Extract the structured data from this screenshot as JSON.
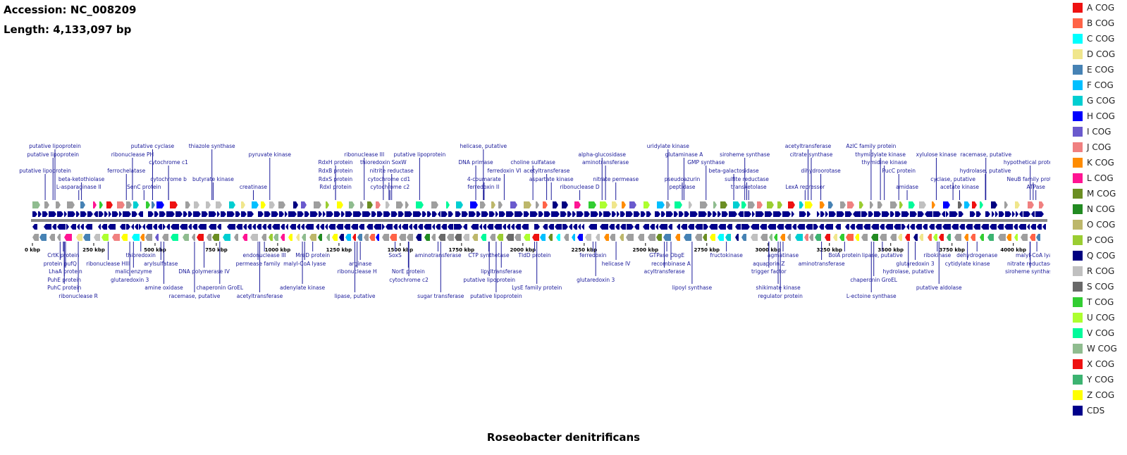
{
  "accession": "Accession: NC_008209",
  "length": "Length: 4,133,097 bp",
  "organism": "Roseobacter denitrificans",
  "genome_bp": 4133097,
  "legend": [
    {
      "label": "A COG",
      "color": "#ee1111"
    },
    {
      "label": "B COG",
      "color": "#ff6347"
    },
    {
      "label": "C COG",
      "color": "#00ffff"
    },
    {
      "label": "D COG",
      "color": "#f0e68c"
    },
    {
      "label": "E COG",
      "color": "#4682b4"
    },
    {
      "label": "F COG",
      "color": "#00bfff"
    },
    {
      "label": "G COG",
      "color": "#00ced1"
    },
    {
      "label": "H COG",
      "color": "#0000ff"
    },
    {
      "label": "I COG",
      "color": "#6a5acd"
    },
    {
      "label": "J COG",
      "color": "#f08080"
    },
    {
      "label": "K COG",
      "color": "#ff8c00"
    },
    {
      "label": "L COG",
      "color": "#ff1493"
    },
    {
      "label": "M COG",
      "color": "#6b8e23"
    },
    {
      "label": "N COG",
      "color": "#228b22"
    },
    {
      "label": "O COG",
      "color": "#bdb76b"
    },
    {
      "label": "P COG",
      "color": "#9acd32"
    },
    {
      "label": "Q COG",
      "color": "#000080"
    },
    {
      "label": "R COG",
      "color": "#c0c0c0"
    },
    {
      "label": "S COG",
      "color": "#696969"
    },
    {
      "label": "T COG",
      "color": "#32cd32"
    },
    {
      "label": "U COG",
      "color": "#adff2f"
    },
    {
      "label": "V COG",
      "color": "#00fa9a"
    },
    {
      "label": "W COG",
      "color": "#8fbc8f"
    },
    {
      "label": "X COG",
      "color": "#ee1111"
    },
    {
      "label": "Y COG",
      "color": "#3cb371"
    },
    {
      "label": "Z COG",
      "color": "#ffff00"
    },
    {
      "label": "CDS",
      "color": "#00008b"
    }
  ],
  "ticks": [
    "0 kbp",
    "250 kbp",
    "500 kbp",
    "750 kbp",
    "1000 kbp",
    "1250 kbp",
    "1500 kbp",
    "1750 kbp",
    "2000 kbp",
    "2250 kbp",
    "2500 kbp",
    "2750 kbp",
    "3000 kbp",
    "3250 kbp",
    "3500 kbp",
    "3750 kbp",
    "4000 kbp"
  ],
  "labels_above": [
    {
      "text": "putative lipoprotein",
      "kbp": 92,
      "row": 0
    },
    {
      "text": "putative lipoprotein",
      "kbp": 84,
      "row": 1
    },
    {
      "text": "putative lipoprotein",
      "kbp": 52,
      "row": 3
    },
    {
      "text": "beta-ketothiolase",
      "kbp": 200,
      "row": 4
    },
    {
      "text": "L-asparaginase II",
      "kbp": 189,
      "row": 5
    },
    {
      "text": "putative cyclase",
      "kbp": 490,
      "row": 0
    },
    {
      "text": "ribonuclease PH",
      "kbp": 408,
      "row": 1
    },
    {
      "text": "cytochrome c1",
      "kbp": 555,
      "row": 2
    },
    {
      "text": "ferrochelatase",
      "kbp": 383,
      "row": 3
    },
    {
      "text": "cytochrome b",
      "kbp": 555,
      "row": 4
    },
    {
      "text": "SenC protein",
      "kbp": 455,
      "row": 5
    },
    {
      "text": "thiazole synthase",
      "kbp": 732,
      "row": 0
    },
    {
      "text": "butyrate kinase",
      "kbp": 737,
      "row": 4
    },
    {
      "text": "pyruvate kinase",
      "kbp": 968,
      "row": 1
    },
    {
      "text": "creatinase",
      "kbp": 901,
      "row": 5
    },
    {
      "text": "ribonuclease III",
      "kbp": 1353,
      "row": 1
    },
    {
      "text": "RdxH protein",
      "kbp": 1236,
      "row": 2
    },
    {
      "text": "RdxB protein",
      "kbp": 1236,
      "row": 3
    },
    {
      "text": "RdxS protein",
      "kbp": 1236,
      "row": 4
    },
    {
      "text": "RdxI protein",
      "kbp": 1236,
      "row": 5
    },
    {
      "text": "thioredoxin SoxW",
      "kbp": 1431,
      "row": 2
    },
    {
      "text": "nitrite reductase",
      "kbp": 1465,
      "row": 3
    },
    {
      "text": "cytochrome cd1",
      "kbp": 1454,
      "row": 4
    },
    {
      "text": "cytochrome c2",
      "kbp": 1458,
      "row": 5
    },
    {
      "text": "putative lipoprotein",
      "kbp": 1579,
      "row": 1
    },
    {
      "text": "helicase, putative",
      "kbp": 1839,
      "row": 0
    },
    {
      "text": "DNA primase",
      "kbp": 1808,
      "row": 2
    },
    {
      "text": "4-coumarate",
      "kbp": 1842,
      "row": 4
    },
    {
      "text": "ferredoxin II",
      "kbp": 1839,
      "row": 5
    },
    {
      "text": "choline sulfatase",
      "kbp": 2041,
      "row": 2
    },
    {
      "text": "ferredoxin VI",
      "kbp": 1924,
      "row": 3
    },
    {
      "text": "acetyltransferase",
      "kbp": 2097,
      "row": 3
    },
    {
      "text": "aspartate kinase",
      "kbp": 2116,
      "row": 4
    },
    {
      "text": "alpha-glucosidase",
      "kbp": 2323,
      "row": 1
    },
    {
      "text": "aminotransferase",
      "kbp": 2337,
      "row": 2
    },
    {
      "text": "nitrate permease",
      "kbp": 2379,
      "row": 4
    },
    {
      "text": "ribonuclease D",
      "kbp": 2232,
      "row": 5
    },
    {
      "text": "uridylate kinase",
      "kbp": 2592,
      "row": 0
    },
    {
      "text": "glutaminase A",
      "kbp": 2657,
      "row": 1
    },
    {
      "text": "GMP synthase",
      "kbp": 2747,
      "row": 2
    },
    {
      "text": "pseudoazurin",
      "kbp": 2650,
      "row": 4
    },
    {
      "text": "peptidase",
      "kbp": 2650,
      "row": 5
    },
    {
      "text": "siroheme synthase",
      "kbp": 2905,
      "row": 1
    },
    {
      "text": "beta-galactosidase",
      "kbp": 2860,
      "row": 3
    },
    {
      "text": "sulfite reductase",
      "kbp": 2913,
      "row": 4
    },
    {
      "text": "transketolase",
      "kbp": 2921,
      "row": 5
    },
    {
      "text": "acetyltransferase",
      "kbp": 3163,
      "row": 0
    },
    {
      "text": "citrate synthase",
      "kbp": 3176,
      "row": 1
    },
    {
      "text": "dihydroorotase",
      "kbp": 3215,
      "row": 3
    },
    {
      "text": "LexA repressor",
      "kbp": 3151,
      "row": 5
    },
    {
      "text": "AzlC family protein",
      "kbp": 3420,
      "row": 0
    },
    {
      "text": "thymidylate kinase",
      "kbp": 3458,
      "row": 1
    },
    {
      "text": "thymidine kinase",
      "kbp": 3474,
      "row": 2
    },
    {
      "text": "PucC protein",
      "kbp": 3533,
      "row": 3
    },
    {
      "text": "amidase",
      "kbp": 3567,
      "row": 5
    },
    {
      "text": "xylulose kinase",
      "kbp": 3686,
      "row": 1
    },
    {
      "text": "cyclase, putative",
      "kbp": 3754,
      "row": 4
    },
    {
      "text": "acetate kinase",
      "kbp": 3781,
      "row": 5
    },
    {
      "text": "racemase, putative",
      "kbp": 3888,
      "row": 1
    },
    {
      "text": "hydrolase, putative",
      "kbp": 3886,
      "row": 3
    },
    {
      "text": "hypothetical protein",
      "kbp": 4069,
      "row": 2
    },
    {
      "text": "NeuB family protein",
      "kbp": 4081,
      "row": 4
    },
    {
      "text": "ATPase",
      "kbp": 4092,
      "row": 5
    }
  ],
  "labels_below": [
    {
      "text": "CrtK protein",
      "kbp": 126,
      "row": 0
    },
    {
      "text": "protein pufQ",
      "kbp": 113,
      "row": 1
    },
    {
      "text": "LhaA protein",
      "kbp": 135,
      "row": 2
    },
    {
      "text": "PuhE protein",
      "kbp": 130,
      "row": 3
    },
    {
      "text": "PuhC protein",
      "kbp": 130,
      "row": 4
    },
    {
      "text": "ribonuclease R",
      "kbp": 187,
      "row": 5
    },
    {
      "text": "ribonuclease HIII",
      "kbp": 309,
      "row": 1
    },
    {
      "text": "thioredoxin",
      "kbp": 442,
      "row": 0
    },
    {
      "text": "arylsulfatase",
      "kbp": 524,
      "row": 1
    },
    {
      "text": "malic enzyme",
      "kbp": 412,
      "row": 2
    },
    {
      "text": "glutaredoxin 3",
      "kbp": 397,
      "row": 3
    },
    {
      "text": "amine oxidase",
      "kbp": 536,
      "row": 4
    },
    {
      "text": "DNA polymerase IV",
      "kbp": 700,
      "row": 2
    },
    {
      "text": "chaperonin GroEL",
      "kbp": 764,
      "row": 4
    },
    {
      "text": "racemase, putative",
      "kbp": 661,
      "row": 5
    },
    {
      "text": "endonuclease III",
      "kbp": 946,
      "row": 0
    },
    {
      "text": "permease family",
      "kbp": 920,
      "row": 1
    },
    {
      "text": "acetyltransferase",
      "kbp": 927,
      "row": 5
    },
    {
      "text": "MreD protein",
      "kbp": 1143,
      "row": 0
    },
    {
      "text": "malyl-CoA lyase",
      "kbp": 1110,
      "row": 1
    },
    {
      "text": "adenylate kinase",
      "kbp": 1101,
      "row": 4
    },
    {
      "text": "arginase",
      "kbp": 1337,
      "row": 1
    },
    {
      "text": "ribonuclease H",
      "kbp": 1324,
      "row": 2
    },
    {
      "text": "lipase, putative",
      "kbp": 1315,
      "row": 5
    },
    {
      "text": "SoxS",
      "kbp": 1479,
      "row": 0
    },
    {
      "text": "NorE protein",
      "kbp": 1533,
      "row": 2
    },
    {
      "text": "cytochrome c2",
      "kbp": 1535,
      "row": 3
    },
    {
      "text": "aminotransferase",
      "kbp": 1654,
      "row": 0
    },
    {
      "text": "sugar transferase",
      "kbp": 1665,
      "row": 5
    },
    {
      "text": "CTP synthetase",
      "kbp": 1861,
      "row": 0
    },
    {
      "text": "lipyltransferase",
      "kbp": 1912,
      "row": 2
    },
    {
      "text": "putative lipoprotein",
      "kbp": 1863,
      "row": 3
    },
    {
      "text": "putative lipoprotein",
      "kbp": 1891,
      "row": 5
    },
    {
      "text": "TldD protein",
      "kbp": 2048,
      "row": 0
    },
    {
      "text": "LysE family protein",
      "kbp": 2057,
      "row": 4
    },
    {
      "text": "ferredoxin",
      "kbp": 2286,
      "row": 0
    },
    {
      "text": "helicase IV",
      "kbp": 2380,
      "row": 1
    },
    {
      "text": "glutaredoxin 3",
      "kbp": 2297,
      "row": 3
    },
    {
      "text": "GTPase ObgE",
      "kbp": 2587,
      "row": 0
    },
    {
      "text": "recombinase A",
      "kbp": 2604,
      "row": 1
    },
    {
      "text": "acyltransferase",
      "kbp": 2577,
      "row": 2
    },
    {
      "text": "lipoyl synthase",
      "kbp": 2690,
      "row": 4
    },
    {
      "text": "fructokinase",
      "kbp": 2830,
      "row": 0
    },
    {
      "text": "aquaporin Z",
      "kbp": 3003,
      "row": 1
    },
    {
      "text": "trigger factor",
      "kbp": 3003,
      "row": 2
    },
    {
      "text": "shikimate kinase",
      "kbp": 3041,
      "row": 4
    },
    {
      "text": "regulator protein",
      "kbp": 3050,
      "row": 5
    },
    {
      "text": "agmatinase",
      "kbp": 3061,
      "row": 0
    },
    {
      "text": "aminotransferase",
      "kbp": 3218,
      "row": 1
    },
    {
      "text": "BolA protein",
      "kbp": 3312,
      "row": 0
    },
    {
      "text": "lipase, putative",
      "kbp": 3466,
      "row": 0
    },
    {
      "text": "chaperonin GroEL",
      "kbp": 3431,
      "row": 3
    },
    {
      "text": "L-ectoine synthase",
      "kbp": 3421,
      "row": 5
    },
    {
      "text": "glutaredoxin 3",
      "kbp": 3600,
      "row": 1
    },
    {
      "text": "hydrolase, putative",
      "kbp": 3572,
      "row": 2
    },
    {
      "text": "ribokinase",
      "kbp": 3690,
      "row": 0
    },
    {
      "text": "putative aldolase",
      "kbp": 3697,
      "row": 4
    },
    {
      "text": "dehydrogenase",
      "kbp": 3852,
      "row": 0
    },
    {
      "text": "cytidylate kinase",
      "kbp": 3813,
      "row": 1
    },
    {
      "text": "malyl-CoA lyase",
      "kbp": 4096,
      "row": 0
    },
    {
      "text": "nitrate reductase",
      "kbp": 4068,
      "row": 1
    },
    {
      "text": "siroheme synthase",
      "kbp": 4069,
      "row": 2
    }
  ]
}
